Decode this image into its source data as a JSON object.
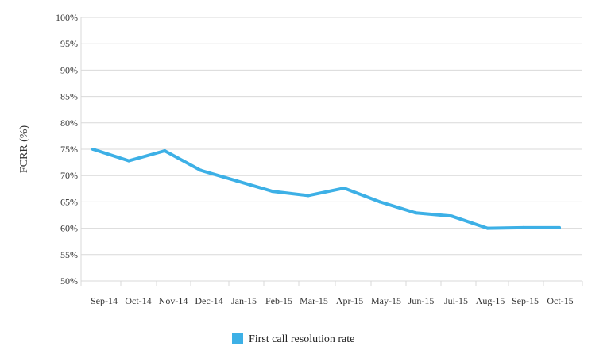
{
  "chart_data": {
    "type": "line",
    "title": "",
    "xlabel": "",
    "ylabel": "FCRR (%)",
    "categories": [
      "Sep-14",
      "Oct-14",
      "Nov-14",
      "Dec-14",
      "Jan-15",
      "Feb-15",
      "Mar-15",
      "Apr-15",
      "May-15",
      "Jun-15",
      "Jul-15",
      "Aug-15",
      "Sep-15",
      "Oct-15"
    ],
    "yticks": [
      "50%",
      "55%",
      "60%",
      "65%",
      "70%",
      "75%",
      "80%",
      "85%",
      "90%",
      "95%",
      "100%"
    ],
    "ylim": [
      50,
      100
    ],
    "grid": true,
    "legend_position": "bottom-center",
    "series": [
      {
        "name": "First call resolution rate",
        "color": "#3db0e6",
        "values": [
          75.0,
          72.8,
          74.7,
          71.0,
          69.0,
          67.0,
          66.2,
          67.6,
          65.0,
          62.9,
          62.3,
          60.0,
          60.1,
          60.1
        ]
      }
    ]
  }
}
